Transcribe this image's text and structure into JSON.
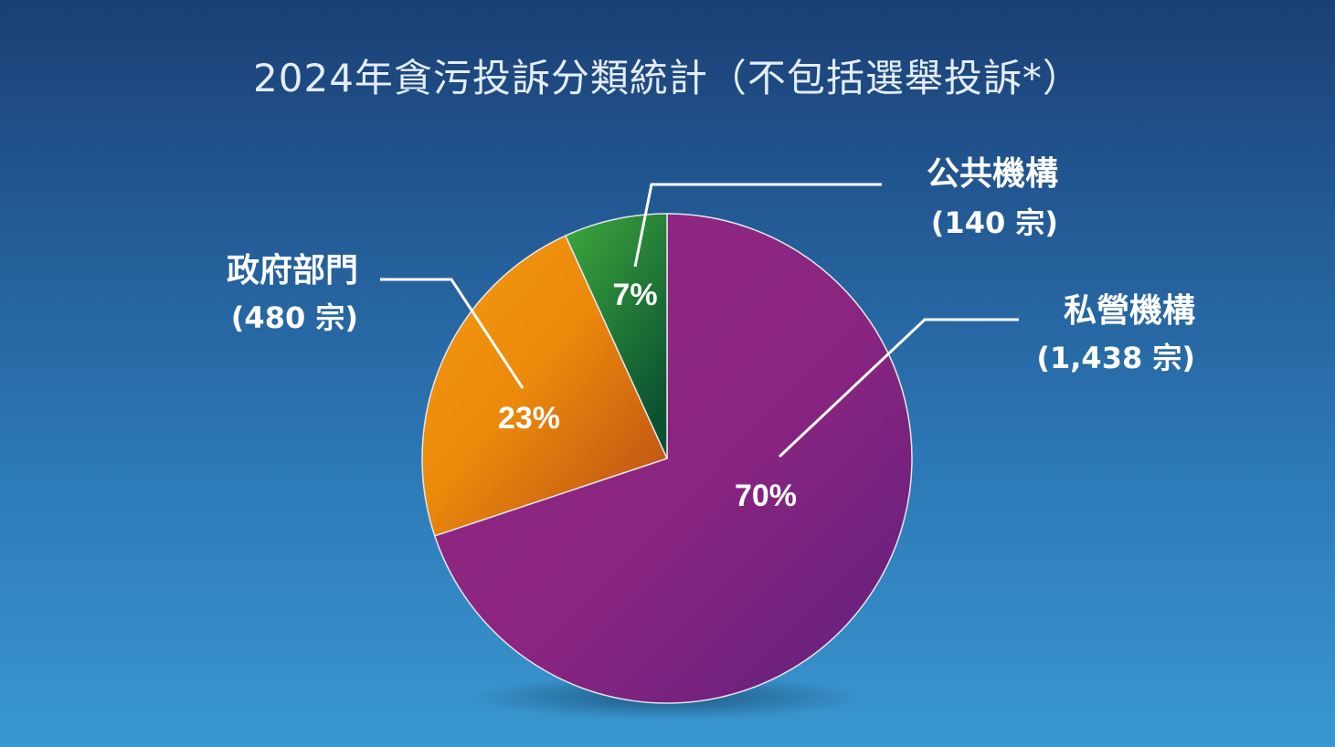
{
  "chart_data": {
    "type": "pie",
    "title": "2024年貪污投訴分類統計（不包括選舉投訴*）",
    "slices": [
      {
        "name": "私營機構",
        "count_label": "(1,438 宗)",
        "value": 1438,
        "percent_label": "70%",
        "color": "#8a2580"
      },
      {
        "name": "政府部門",
        "count_label": "(480 宗)",
        "value": 480,
        "percent_label": "23%",
        "color": "#ee8c0e"
      },
      {
        "name": "公共機構",
        "count_label": "(140 宗)",
        "value": 140,
        "percent_label": "7%",
        "color": "#2e8f3c"
      }
    ],
    "legend": "none",
    "grid": false
  }
}
